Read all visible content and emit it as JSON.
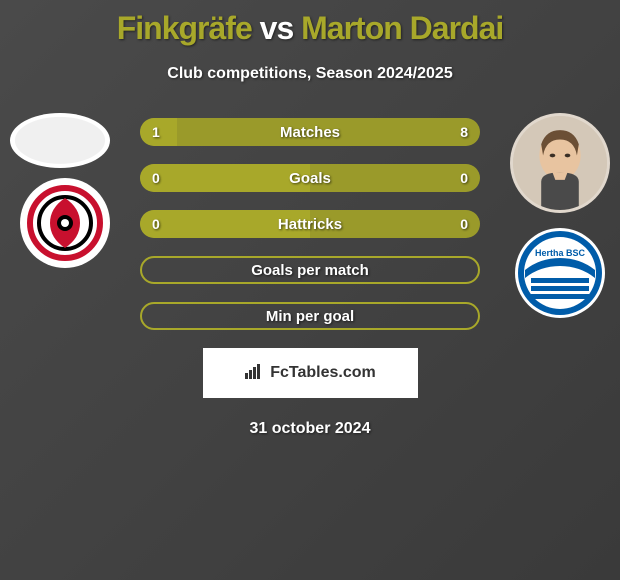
{
  "title": {
    "player1": "Finkgräfe",
    "vs": "vs",
    "player2": "Marton Dardai"
  },
  "subtitle": "Club competitions, Season 2024/2025",
  "stats": [
    {
      "label": "Matches",
      "left_value": "1",
      "right_value": "8",
      "left_pct": 11,
      "right_pct": 89,
      "filled": true
    },
    {
      "label": "Goals",
      "left_value": "0",
      "right_value": "0",
      "left_pct": 50,
      "right_pct": 50,
      "filled": true
    },
    {
      "label": "Hattricks",
      "left_value": "0",
      "right_value": "0",
      "left_pct": 50,
      "right_pct": 50,
      "filled": true
    },
    {
      "label": "Goals per match",
      "left_value": "",
      "right_value": "",
      "left_pct": 0,
      "right_pct": 0,
      "filled": false
    },
    {
      "label": "Min per goal",
      "left_value": "",
      "right_value": "",
      "left_pct": 0,
      "right_pct": 0,
      "filled": false
    }
  ],
  "watermark": "FcTables.com",
  "date": "31 october 2024",
  "colors": {
    "accent": "#a8a82a",
    "bar_bg": "#9a9a2a",
    "background_dark": "#3a3a3a",
    "text": "#ffffff"
  },
  "clubs": {
    "left_name": "carolina-hurricanes-style-logo",
    "right_name": "hertha-bsc-logo",
    "right_text": "Hertha BSC"
  }
}
